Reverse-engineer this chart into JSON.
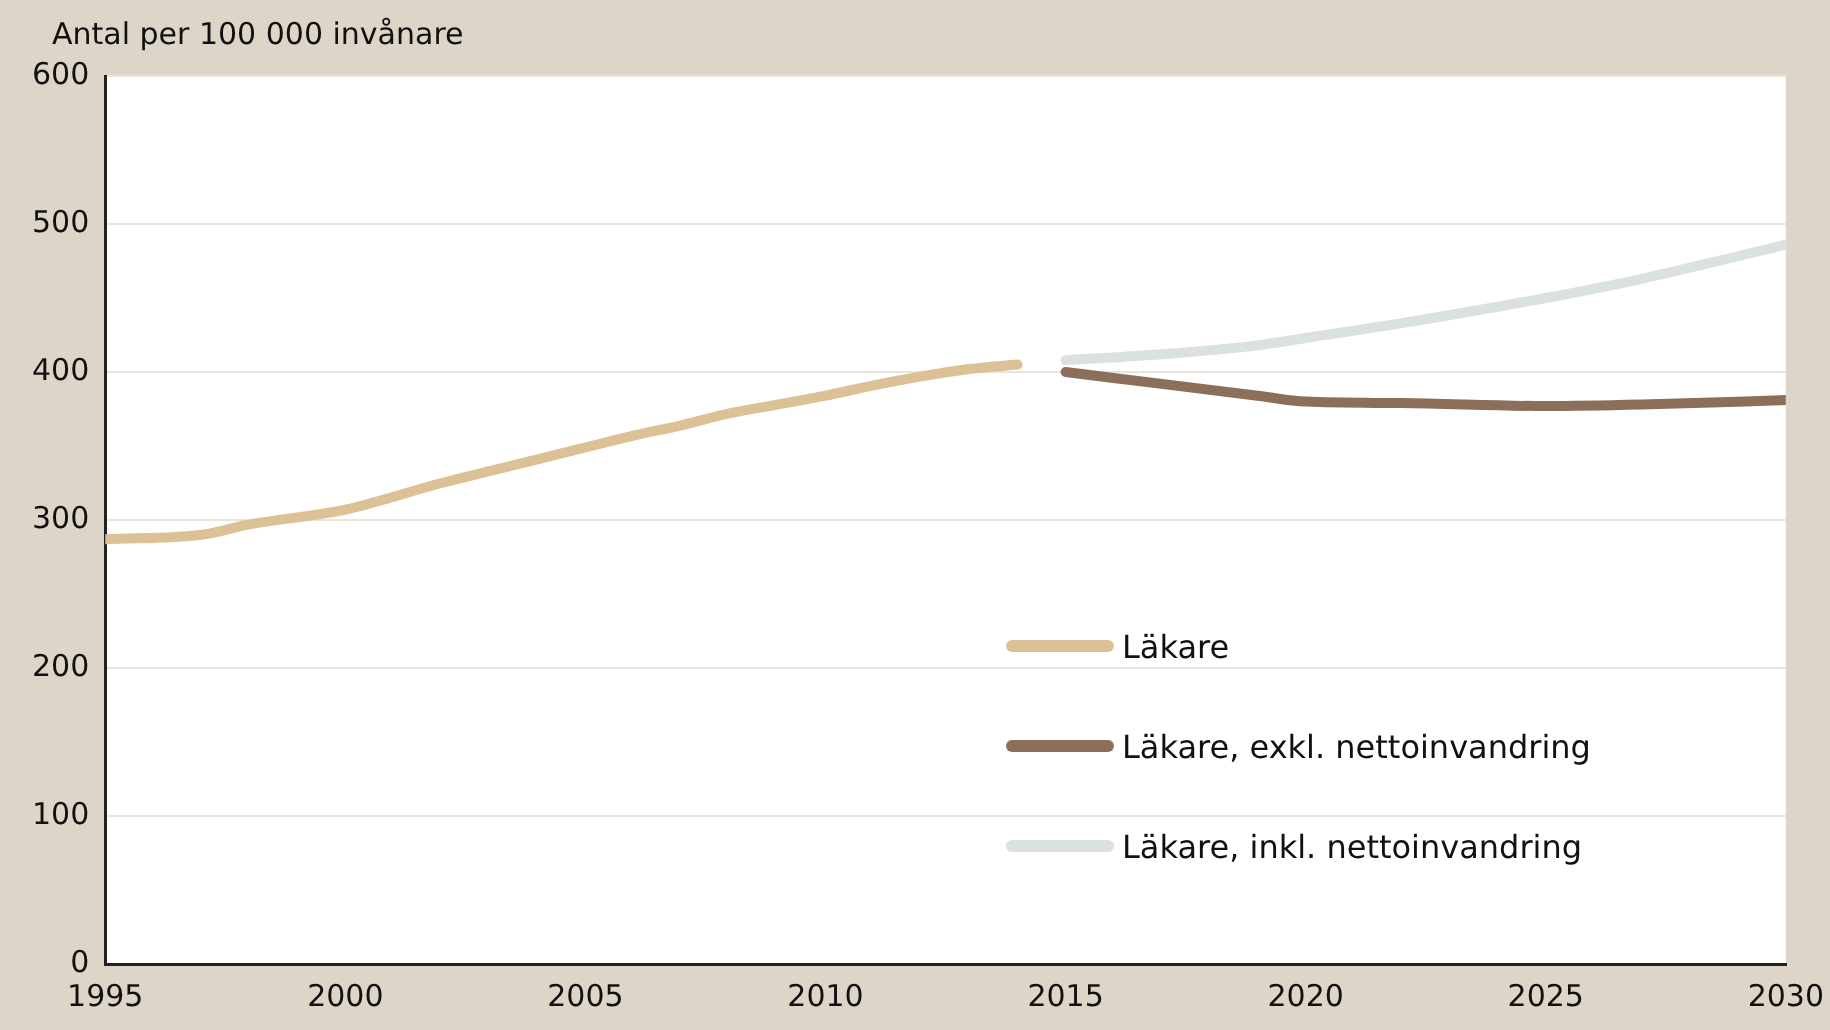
{
  "chart_data": {
    "type": "line",
    "ylabel": "Antal per 100 000 invånare",
    "xlim": [
      1995,
      2030
    ],
    "xticks": [
      1995,
      2000,
      2005,
      2010,
      2015,
      2020,
      2025,
      2030
    ],
    "ylim": [
      0,
      600
    ],
    "yticks": [
      0,
      100,
      200,
      300,
      400,
      500,
      600
    ],
    "grid": "y",
    "legend": "bottom right",
    "marker": "none",
    "line_style": "solid",
    "series": [
      {
        "name": "Läkare",
        "color": "#dcc197",
        "x": [
          1995,
          1997,
          1998,
          2000,
          2002,
          2003,
          2004,
          2005,
          2006,
          2007,
          2008,
          2009,
          2010,
          2011,
          2012,
          2013,
          2014
        ],
        "values": [
          287,
          290,
          297,
          307,
          325,
          333,
          341,
          349,
          357,
          364,
          372,
          378,
          384,
          391,
          397,
          402,
          405
        ]
      },
      {
        "name": "Läkare, exkl. nettoinvandring",
        "color": "#8c6f5a",
        "x": [
          2015,
          2017,
          2019,
          2020,
          2022,
          2025,
          2027,
          2030
        ],
        "values": [
          400,
          392,
          384,
          380,
          379,
          377,
          378,
          381
        ]
      },
      {
        "name": "Läkare, inkl. nettoinvandring",
        "color": "#dbe1df",
        "x": [
          2015,
          2017,
          2019,
          2020,
          2022,
          2025,
          2027,
          2030
        ],
        "values": [
          408,
          412,
          418,
          423,
          433,
          450,
          463,
          486
        ]
      }
    ]
  }
}
